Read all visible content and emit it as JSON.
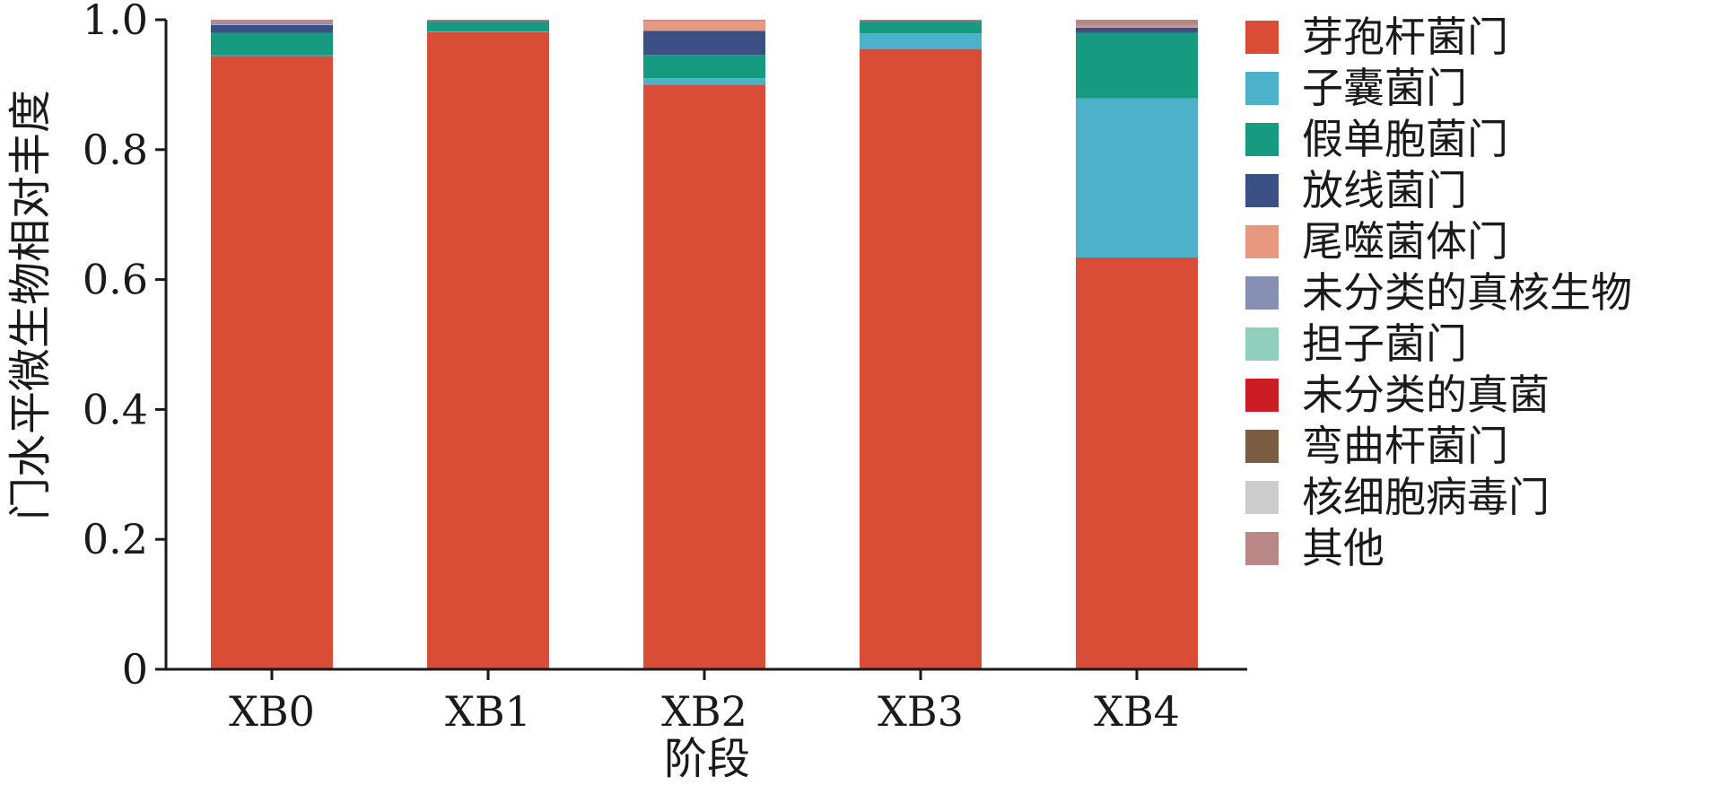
{
  "chart_data": {
    "type": "bar",
    "stacked": true,
    "title": "",
    "xlabel": "阶段",
    "ylabel": "门水平微生物相对丰度",
    "ylim": [
      0,
      1.0
    ],
    "yticks": [
      0,
      0.2,
      0.4,
      0.6,
      0.8,
      1.0
    ],
    "ytick_labels": [
      "0",
      "0.2",
      "0.4",
      "0.6",
      "0.8",
      "1.0"
    ],
    "grid": false,
    "legend_position": "right",
    "categories": [
      "XB0",
      "XB1",
      "XB2",
      "XB3",
      "XB4"
    ],
    "series": [
      {
        "name": "芽孢杆菌门",
        "color": "#d94c36",
        "values": [
          0.944,
          0.981,
          0.9,
          0.955,
          0.634
        ]
      },
      {
        "name": "子囊菌门",
        "color": "#4db2c9",
        "values": [
          0.001,
          0.001,
          0.01,
          0.024,
          0.245
        ]
      },
      {
        "name": "假单胞菌门",
        "color": "#169a80",
        "values": [
          0.035,
          0.015,
          0.036,
          0.018,
          0.101
        ]
      },
      {
        "name": "放线菌门",
        "color": "#3b5186",
        "values": [
          0.012,
          0.001,
          0.037,
          0.001,
          0.008
        ]
      },
      {
        "name": "尾噬菌体门",
        "color": "#e99880",
        "values": [
          0.001,
          0.0,
          0.015,
          0.0,
          0.003
        ]
      },
      {
        "name": "未分类的真核生物",
        "color": "#8590b4",
        "values": [
          0.003,
          0.0,
          0.0,
          0.0,
          0.002
        ]
      },
      {
        "name": "担子菌门",
        "color": "#90cfbe",
        "values": [
          0.0,
          0.0,
          0.0,
          0.0,
          0.001
        ]
      },
      {
        "name": "未分类的真菌",
        "color": "#cc1c25",
        "values": [
          0.0,
          0.0,
          0.0,
          0.0,
          0.001
        ]
      },
      {
        "name": "弯曲杆菌门",
        "color": "#7c5b43",
        "values": [
          0.0,
          0.0,
          0.0,
          0.0,
          0.0
        ]
      },
      {
        "name": "核细胞病毒门",
        "color": "#cccccc",
        "values": [
          0.0,
          0.0,
          0.0,
          0.0,
          0.0
        ]
      },
      {
        "name": "其他",
        "color": "#b98886",
        "values": [
          0.004,
          0.002,
          0.002,
          0.002,
          0.005
        ]
      }
    ]
  }
}
